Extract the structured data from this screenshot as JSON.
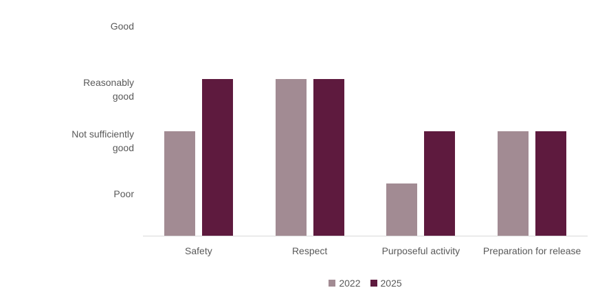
{
  "chart_data": {
    "type": "bar",
    "title": "",
    "categories": [
      "Safety",
      "Respect",
      "Purposeful activity",
      "Preparation for release"
    ],
    "series": [
      {
        "name": "2022",
        "color": "#a28b93",
        "values": [
          2,
          3,
          1,
          2
        ]
      },
      {
        "name": "2025",
        "color": "#5e1a3e",
        "values": [
          3,
          3,
          2,
          2
        ]
      }
    ],
    "value_labels": {
      "1": "Poor",
      "2": "Not sufficiently good",
      "3": "Reasonably good",
      "4": "Good"
    },
    "series_value_meanings": {
      "2022": [
        "Not sufficiently good",
        "Reasonably good",
        "Poor",
        "Not sufficiently good"
      ],
      "2025": [
        "Reasonably good",
        "Reasonably good",
        "Not sufficiently good",
        "Not sufficiently good"
      ]
    },
    "ylim": [
      0,
      4
    ],
    "xlabel": "",
    "ylabel": "",
    "grid": false,
    "legend_position": "bottom"
  },
  "legend": {
    "items": [
      {
        "label": "2022",
        "color": "#a28b93"
      },
      {
        "label": "2025",
        "color": "#5e1a3e"
      }
    ]
  },
  "colors": {
    "series_2022": "#a28b93",
    "series_2025": "#5e1a3e",
    "axis_line": "#d9d9d9",
    "text": "#595959"
  }
}
